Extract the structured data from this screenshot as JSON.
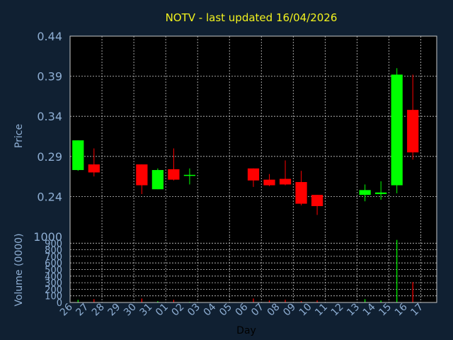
{
  "chart_data": [
    {
      "type": "candlestick",
      "title": "NOTV - last updated 16/04/2026",
      "ylabel": "Price",
      "ylim": [
        0.19,
        0.44
      ],
      "yticks": [
        "0.44",
        "0.39",
        "0.34",
        "0.29",
        "0.24"
      ],
      "grid": true,
      "categories": [
        "26",
        "27",
        "28",
        "29",
        "30",
        "31",
        "01",
        "02",
        "03",
        "04",
        "05",
        "06",
        "07",
        "08",
        "09",
        "10",
        "11",
        "12",
        "13",
        "14",
        "15",
        "16",
        "17"
      ],
      "candles": [
        {
          "x": 0,
          "open": 0.273,
          "high": 0.31,
          "low": 0.272,
          "close": 0.31
        },
        {
          "x": 1,
          "open": 0.28,
          "high": 0.3,
          "low": 0.265,
          "close": 0.27
        },
        {
          "x": 4,
          "open": 0.28,
          "high": 0.28,
          "low": 0.243,
          "close": 0.254
        },
        {
          "x": 5,
          "open": 0.249,
          "high": 0.275,
          "low": 0.249,
          "close": 0.273
        },
        {
          "x": 6,
          "open": 0.274,
          "high": 0.3,
          "low": 0.26,
          "close": 0.261
        },
        {
          "x": 7,
          "open": 0.267,
          "high": 0.275,
          "low": 0.255,
          "close": 0.267
        },
        {
          "x": 11,
          "open": 0.275,
          "high": 0.275,
          "low": 0.252,
          "close": 0.26
        },
        {
          "x": 12,
          "open": 0.261,
          "high": 0.268,
          "low": 0.253,
          "close": 0.254
        },
        {
          "x": 13,
          "open": 0.262,
          "high": 0.285,
          "low": 0.254,
          "close": 0.255
        },
        {
          "x": 14,
          "open": 0.258,
          "high": 0.272,
          "low": 0.229,
          "close": 0.231
        },
        {
          "x": 15,
          "open": 0.242,
          "high": 0.242,
          "low": 0.217,
          "close": 0.228
        },
        {
          "x": 18,
          "open": 0.242,
          "high": 0.255,
          "low": 0.234,
          "close": 0.248
        },
        {
          "x": 19,
          "open": 0.243,
          "high": 0.259,
          "low": 0.236,
          "close": 0.245
        },
        {
          "x": 20,
          "open": 0.254,
          "high": 0.4,
          "low": 0.244,
          "close": 0.392
        },
        {
          "x": 21,
          "open": 0.348,
          "high": 0.392,
          "low": 0.286,
          "close": 0.295
        }
      ]
    },
    {
      "type": "bar",
      "ylabel": "Volume (0000)",
      "xlabel": "Day",
      "ylim": [
        0,
        1000
      ],
      "yticks": [
        "1000",
        "900",
        "800",
        "700",
        "600",
        "500",
        "400",
        "300",
        "200",
        "100",
        "0"
      ],
      "grid": true,
      "categories": [
        "26",
        "27",
        "28",
        "29",
        "30",
        "31",
        "01",
        "02",
        "03",
        "04",
        "05",
        "06",
        "07",
        "08",
        "09",
        "10",
        "11",
        "12",
        "13",
        "14",
        "15",
        "16",
        "17"
      ],
      "bars": [
        {
          "x": 0,
          "value": 40,
          "color": "#00ff00"
        },
        {
          "x": 1,
          "value": 50,
          "color": "#ff0000"
        },
        {
          "x": 4,
          "value": 60,
          "color": "#ff0000"
        },
        {
          "x": 5,
          "value": 20,
          "color": "#00ff00"
        },
        {
          "x": 6,
          "value": 40,
          "color": "#ff0000"
        },
        {
          "x": 7,
          "value": 10,
          "color": "#00ff00"
        },
        {
          "x": 11,
          "value": 60,
          "color": "#ff0000"
        },
        {
          "x": 12,
          "value": 30,
          "color": "#ff0000"
        },
        {
          "x": 13,
          "value": 40,
          "color": "#ff0000"
        },
        {
          "x": 14,
          "value": 20,
          "color": "#ff0000"
        },
        {
          "x": 15,
          "value": 30,
          "color": "#ff0000"
        },
        {
          "x": 18,
          "value": 50,
          "color": "#00ff00"
        },
        {
          "x": 19,
          "value": 30,
          "color": "#00ff00"
        },
        {
          "x": 20,
          "value": 950,
          "color": "#00ff00"
        },
        {
          "x": 21,
          "value": 310,
          "color": "#ff0000"
        }
      ]
    }
  ],
  "colors": {
    "background": "#102032",
    "plot_background": "#000000",
    "up": "#00ff00",
    "down": "#ff0000",
    "grid": "#c8c8c8",
    "label": "#8eaed3",
    "title": "#f2f21e"
  }
}
